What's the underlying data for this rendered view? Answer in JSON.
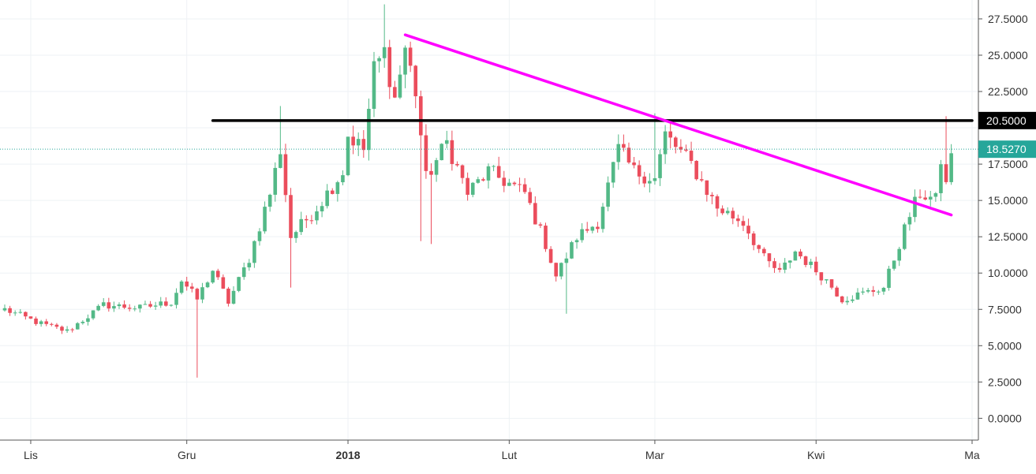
{
  "chart_data": {
    "type": "candlestick",
    "grid": true,
    "y_axis": {
      "position": "right",
      "ylim": [
        -1.5,
        28.8
      ],
      "ticks": [
        0,
        2.5,
        5,
        7.5,
        10,
        12.5,
        15,
        17.5,
        22.5,
        25,
        27.5
      ],
      "tick_labels": [
        "0.0000",
        "2.5000",
        "5.0000",
        "7.5000",
        "10.0000",
        "12.5000",
        "15.0000",
        "17.5000",
        "22.5000",
        "25.0000",
        "27.5000"
      ]
    },
    "x_axis": {
      "date_range": [
        "2017-10-27",
        "2018-05-01"
      ],
      "labels": [
        {
          "date": "2017-11-01",
          "label": "Lis",
          "bold": false
        },
        {
          "date": "2017-12-01",
          "label": "Gru",
          "bold": false
        },
        {
          "date": "2018-01-01",
          "label": "2018",
          "bold": true
        },
        {
          "date": "2018-02-01",
          "label": "Lut",
          "bold": false
        },
        {
          "date": "2018-03-01",
          "label": "Mar",
          "bold": false
        },
        {
          "date": "2018-04-01",
          "label": "Kwi",
          "bold": false
        },
        {
          "date": "2018-05-01",
          "label": "Ma",
          "bold": false
        }
      ]
    },
    "price_labels": [
      {
        "value": 20.5,
        "label": "20.5000",
        "color": "#000000"
      },
      {
        "value": 18.527,
        "label": "18.5270",
        "color": "#26a69a"
      }
    ],
    "lines": [
      {
        "name": "resistance",
        "color": "#000000",
        "start": [
          "2017-12-06",
          20.5
        ],
        "end": [
          "2018-05-01",
          20.5
        ]
      },
      {
        "name": "trendline",
        "color": "#ff00ff",
        "start": [
          "2018-01-12",
          26.4
        ],
        "end": [
          "2018-04-27",
          14.0
        ]
      }
    ],
    "current_price_line": {
      "value": 18.527,
      "color": "#26a69a"
    },
    "colors": {
      "up": "#53b987",
      "down": "#eb4d5c",
      "grid": "#eef2f5",
      "axis_text": "#333333"
    },
    "anchors": [
      [
        "2017-10-27",
        7.5
      ],
      [
        "2017-11-03",
        6.5
      ],
      [
        "2017-11-08",
        6.0
      ],
      [
        "2017-11-15",
        7.8
      ],
      [
        "2017-11-22",
        7.6
      ],
      [
        "2017-11-28",
        8.0
      ],
      [
        "2017-11-30",
        9.5
      ],
      [
        "2017-12-03",
        8.2
      ],
      [
        "2017-12-06",
        10.2
      ],
      [
        "2017-12-09",
        8.0
      ],
      [
        "2017-12-13",
        11.0
      ],
      [
        "2017-12-17",
        15.5
      ],
      [
        "2017-12-19",
        18.5
      ],
      [
        "2017-12-21",
        12.5
      ],
      [
        "2017-12-26",
        14.5
      ],
      [
        "2017-12-31",
        17.0
      ],
      [
        "2018-01-01",
        19.5
      ],
      [
        "2018-01-04",
        18.5
      ],
      [
        "2018-01-06",
        24.0
      ],
      [
        "2018-01-08",
        25.2
      ],
      [
        "2018-01-10",
        22.0
      ],
      [
        "2018-01-12",
        25.5
      ],
      [
        "2018-01-14",
        22.5
      ],
      [
        "2018-01-16",
        16.5
      ],
      [
        "2018-01-20",
        19.0
      ],
      [
        "2018-01-24",
        15.5
      ],
      [
        "2018-01-28",
        17.0
      ],
      [
        "2018-02-04",
        15.5
      ],
      [
        "2018-02-08",
        12.0
      ],
      [
        "2018-02-10",
        9.8
      ],
      [
        "2018-02-14",
        12.5
      ],
      [
        "2018-02-18",
        13.5
      ],
      [
        "2018-02-22",
        18.5
      ],
      [
        "2018-02-25",
        17.0
      ],
      [
        "2018-03-01",
        16.5
      ],
      [
        "2018-03-03",
        19.5
      ],
      [
        "2018-03-08",
        17.5
      ],
      [
        "2018-03-13",
        14.5
      ],
      [
        "2018-03-18",
        13.5
      ],
      [
        "2018-03-22",
        11.0
      ],
      [
        "2018-03-25",
        10.0
      ],
      [
        "2018-03-28",
        11.5
      ],
      [
        "2018-04-03",
        9.5
      ],
      [
        "2018-04-06",
        8.2
      ],
      [
        "2018-04-09",
        8.5
      ],
      [
        "2018-04-14",
        9.0
      ],
      [
        "2018-04-17",
        12.0
      ],
      [
        "2018-04-19",
        14.0
      ],
      [
        "2018-04-21",
        15.5
      ],
      [
        "2018-04-24",
        15.0
      ],
      [
        "2018-04-25",
        17.8
      ],
      [
        "2018-04-26",
        16.0
      ],
      [
        "2018-04-27",
        18.5
      ]
    ],
    "spikes": [
      {
        "date": "2017-12-03",
        "low": 2.8
      },
      {
        "date": "2017-12-19",
        "high": 21.5
      },
      {
        "date": "2017-12-21",
        "low": 9.0
      },
      {
        "date": "2018-01-08",
        "high": 28.5
      },
      {
        "date": "2018-01-15",
        "low": 12.2
      },
      {
        "date": "2018-02-12",
        "low": 7.2
      },
      {
        "date": "2018-03-01",
        "high": 21.0
      },
      {
        "date": "2018-04-26",
        "high": 20.8
      },
      {
        "date": "2018-01-17",
        "low": 12.0
      }
    ]
  }
}
